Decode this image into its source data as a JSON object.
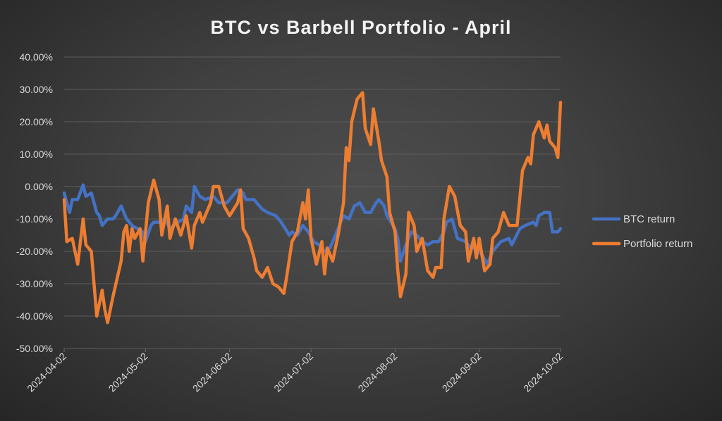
{
  "chart_data": {
    "type": "line",
    "title": "BTC vs Barbell Portfolio - April",
    "xlabel": "",
    "ylabel": "",
    "x_ticks": [
      "2024-04-02",
      "2024-05-02",
      "2024-06-02",
      "2024-07-02",
      "2024-08-02",
      "2024-09-02",
      "2024-10-02"
    ],
    "x_range": [
      "2024-04-02",
      "2024-10-02"
    ],
    "y_ticks": [
      "40.00%",
      "30.00%",
      "20.00%",
      "10.00%",
      "0.00%",
      "-10.00%",
      "-20.00%",
      "-30.00%",
      "-40.00%",
      "-50.00%"
    ],
    "ylim": [
      -50,
      40
    ],
    "y_unit": "%",
    "grid": true,
    "legend_position": "right",
    "series": [
      {
        "name": "BTC return",
        "color": "#4472c4",
        "points": [
          [
            "2024-04-02",
            -2
          ],
          [
            "2024-04-04",
            -8
          ],
          [
            "2024-04-05",
            -4
          ],
          [
            "2024-04-07",
            -4
          ],
          [
            "2024-04-09",
            0.5
          ],
          [
            "2024-04-10",
            -3
          ],
          [
            "2024-04-12",
            -2
          ],
          [
            "2024-04-14",
            -8
          ],
          [
            "2024-04-15",
            -9
          ],
          [
            "2024-04-16",
            -12
          ],
          [
            "2024-04-18",
            -10
          ],
          [
            "2024-04-20",
            -10
          ],
          [
            "2024-04-21",
            -9
          ],
          [
            "2024-04-23",
            -6
          ],
          [
            "2024-04-25",
            -10
          ],
          [
            "2024-04-27",
            -12
          ],
          [
            "2024-04-29",
            -13
          ],
          [
            "2024-05-01",
            -14
          ],
          [
            "2024-05-02",
            -17
          ],
          [
            "2024-05-04",
            -12
          ],
          [
            "2024-05-05",
            -11
          ],
          [
            "2024-05-07",
            -11
          ],
          [
            "2024-05-09",
            -10
          ],
          [
            "2024-05-11",
            -13
          ],
          [
            "2024-05-14",
            -11
          ],
          [
            "2024-05-16",
            -10
          ],
          [
            "2024-05-17",
            -6
          ],
          [
            "2024-05-19",
            -8
          ],
          [
            "2024-05-20",
            0
          ],
          [
            "2024-05-22",
            -3
          ],
          [
            "2024-05-24",
            -4
          ],
          [
            "2024-05-27",
            -3
          ],
          [
            "2024-05-29",
            -5
          ],
          [
            "2024-06-01",
            -5
          ],
          [
            "2024-06-03",
            -3
          ],
          [
            "2024-06-05",
            -1
          ],
          [
            "2024-06-07",
            -2
          ],
          [
            "2024-06-08",
            -4
          ],
          [
            "2024-06-11",
            -4
          ],
          [
            "2024-06-12",
            -5
          ],
          [
            "2024-06-14",
            -7
          ],
          [
            "2024-06-16",
            -8
          ],
          [
            "2024-06-19",
            -9
          ],
          [
            "2024-06-21",
            -11
          ],
          [
            "2024-06-24",
            -15
          ],
          [
            "2024-06-25",
            -14
          ],
          [
            "2024-06-27",
            -15
          ],
          [
            "2024-06-29",
            -12
          ],
          [
            "2024-07-01",
            -14
          ],
          [
            "2024-07-03",
            -17
          ],
          [
            "2024-07-05",
            -18
          ],
          [
            "2024-07-07",
            -20
          ],
          [
            "2024-07-09",
            -19
          ],
          [
            "2024-07-12",
            -13
          ],
          [
            "2024-07-14",
            -9
          ],
          [
            "2024-07-16",
            -10
          ],
          [
            "2024-07-18",
            -6
          ],
          [
            "2024-07-20",
            -5
          ],
          [
            "2024-07-22",
            -8
          ],
          [
            "2024-07-24",
            -8
          ],
          [
            "2024-07-26",
            -5
          ],
          [
            "2024-07-27",
            -4
          ],
          [
            "2024-07-29",
            -6
          ],
          [
            "2024-07-30",
            -9
          ],
          [
            "2024-08-02",
            -13
          ],
          [
            "2024-08-03",
            -16
          ],
          [
            "2024-08-04",
            -23
          ],
          [
            "2024-08-06",
            -18
          ],
          [
            "2024-08-08",
            -14
          ],
          [
            "2024-08-10",
            -15
          ],
          [
            "2024-08-12",
            -17
          ],
          [
            "2024-08-14",
            -18
          ],
          [
            "2024-08-16",
            -17
          ],
          [
            "2024-08-18",
            -17
          ],
          [
            "2024-08-20",
            -14
          ],
          [
            "2024-08-21",
            -11
          ],
          [
            "2024-08-23",
            -10
          ],
          [
            "2024-08-25",
            -16
          ],
          [
            "2024-08-28",
            -17
          ],
          [
            "2024-08-30",
            -19
          ],
          [
            "2024-09-01",
            -19
          ],
          [
            "2024-09-03",
            -21
          ],
          [
            "2024-09-05",
            -24
          ],
          [
            "2024-09-07",
            -20
          ],
          [
            "2024-09-10",
            -17
          ],
          [
            "2024-09-13",
            -16
          ],
          [
            "2024-09-14",
            -18
          ],
          [
            "2024-09-17",
            -13
          ],
          [
            "2024-09-19",
            -12
          ],
          [
            "2024-09-22",
            -11
          ],
          [
            "2024-09-23",
            -12
          ],
          [
            "2024-09-24",
            -9
          ],
          [
            "2024-09-26",
            -8
          ],
          [
            "2024-09-28",
            -8
          ],
          [
            "2024-09-29",
            -14
          ],
          [
            "2024-10-01",
            -14
          ],
          [
            "2024-10-02",
            -13
          ]
        ]
      },
      {
        "name": "Portfolio return",
        "color": "#ed7d31",
        "points": [
          [
            "2024-04-02",
            -4
          ],
          [
            "2024-04-03",
            -17
          ],
          [
            "2024-04-05",
            -16
          ],
          [
            "2024-04-07",
            -24
          ],
          [
            "2024-04-09",
            -10
          ],
          [
            "2024-04-10",
            -18
          ],
          [
            "2024-04-12",
            -20
          ],
          [
            "2024-04-14",
            -40
          ],
          [
            "2024-04-16",
            -32
          ],
          [
            "2024-04-17",
            -38
          ],
          [
            "2024-04-18",
            -42
          ],
          [
            "2024-04-20",
            -34
          ],
          [
            "2024-04-23",
            -23
          ],
          [
            "2024-04-24",
            -14
          ],
          [
            "2024-04-25",
            -12
          ],
          [
            "2024-04-26",
            -20
          ],
          [
            "2024-04-27",
            -13
          ],
          [
            "2024-04-28",
            -16
          ],
          [
            "2024-04-30",
            -13
          ],
          [
            "2024-05-01",
            -23
          ],
          [
            "2024-05-03",
            -5
          ],
          [
            "2024-05-05",
            2
          ],
          [
            "2024-05-07",
            -4
          ],
          [
            "2024-05-08",
            -15
          ],
          [
            "2024-05-10",
            -6
          ],
          [
            "2024-05-11",
            -16
          ],
          [
            "2024-05-13",
            -10
          ],
          [
            "2024-05-15",
            -15
          ],
          [
            "2024-05-17",
            -9
          ],
          [
            "2024-05-19",
            -19
          ],
          [
            "2024-05-20",
            -12
          ],
          [
            "2024-05-22",
            -8
          ],
          [
            "2024-05-23",
            -11
          ],
          [
            "2024-05-26",
            -5
          ],
          [
            "2024-05-27",
            0
          ],
          [
            "2024-05-29",
            0
          ],
          [
            "2024-05-31",
            -6
          ],
          [
            "2024-06-02",
            -9
          ],
          [
            "2024-06-05",
            -5
          ],
          [
            "2024-06-06",
            -1
          ],
          [
            "2024-06-07",
            -13
          ],
          [
            "2024-06-09",
            -16
          ],
          [
            "2024-06-11",
            -22
          ],
          [
            "2024-06-12",
            -26
          ],
          [
            "2024-06-14",
            -28
          ],
          [
            "2024-06-16",
            -25
          ],
          [
            "2024-06-18",
            -30
          ],
          [
            "2024-06-20",
            -31
          ],
          [
            "2024-06-22",
            -33
          ],
          [
            "2024-06-23",
            -28
          ],
          [
            "2024-06-25",
            -17
          ],
          [
            "2024-06-27",
            -14
          ],
          [
            "2024-06-29",
            -5
          ],
          [
            "2024-06-30",
            -10
          ],
          [
            "2024-07-01",
            -1
          ],
          [
            "2024-07-02",
            -16
          ],
          [
            "2024-07-04",
            -24
          ],
          [
            "2024-07-06",
            -17
          ],
          [
            "2024-07-07",
            -27
          ],
          [
            "2024-07-08",
            -19
          ],
          [
            "2024-07-10",
            -23
          ],
          [
            "2024-07-12",
            -15
          ],
          [
            "2024-07-14",
            -5
          ],
          [
            "2024-07-15",
            12
          ],
          [
            "2024-07-16",
            8
          ],
          [
            "2024-07-17",
            20
          ],
          [
            "2024-07-19",
            27
          ],
          [
            "2024-07-21",
            29
          ],
          [
            "2024-07-22",
            18
          ],
          [
            "2024-07-24",
            13
          ],
          [
            "2024-07-25",
            24
          ],
          [
            "2024-07-27",
            14
          ],
          [
            "2024-07-28",
            8
          ],
          [
            "2024-07-30",
            3
          ],
          [
            "2024-07-31",
            -8
          ],
          [
            "2024-08-02",
            -14
          ],
          [
            "2024-08-03",
            -26
          ],
          [
            "2024-08-04",
            -34
          ],
          [
            "2024-08-06",
            -27
          ],
          [
            "2024-08-07",
            -8
          ],
          [
            "2024-08-09",
            -12
          ],
          [
            "2024-08-10",
            -20
          ],
          [
            "2024-08-12",
            -16
          ],
          [
            "2024-08-14",
            -26
          ],
          [
            "2024-08-16",
            -28
          ],
          [
            "2024-08-17",
            -25
          ],
          [
            "2024-08-19",
            -25
          ],
          [
            "2024-08-20",
            -10
          ],
          [
            "2024-08-22",
            0
          ],
          [
            "2024-08-24",
            -3
          ],
          [
            "2024-08-26",
            -12
          ],
          [
            "2024-08-28",
            -14
          ],
          [
            "2024-08-29",
            -23
          ],
          [
            "2024-08-31",
            -16
          ],
          [
            "2024-09-01",
            -22
          ],
          [
            "2024-09-02",
            -16
          ],
          [
            "2024-09-04",
            -26
          ],
          [
            "2024-09-06",
            -24
          ],
          [
            "2024-09-07",
            -16
          ],
          [
            "2024-09-09",
            -14
          ],
          [
            "2024-09-11",
            -8
          ],
          [
            "2024-09-13",
            -12
          ],
          [
            "2024-09-16",
            -12
          ],
          [
            "2024-09-18",
            5
          ],
          [
            "2024-09-20",
            9
          ],
          [
            "2024-09-21",
            7
          ],
          [
            "2024-09-22",
            16
          ],
          [
            "2024-09-24",
            20
          ],
          [
            "2024-09-26",
            15
          ],
          [
            "2024-09-27",
            19
          ],
          [
            "2024-09-28",
            14
          ],
          [
            "2024-09-30",
            12
          ],
          [
            "2024-10-01",
            9
          ],
          [
            "2024-10-02",
            26
          ]
        ]
      }
    ]
  }
}
